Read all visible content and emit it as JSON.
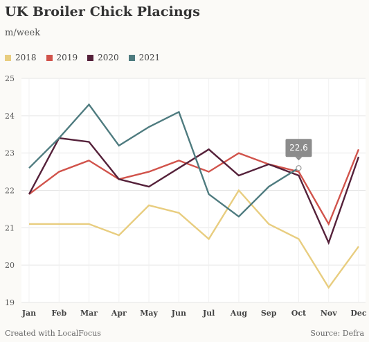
{
  "title": "UK Broiler Chick Placings",
  "subtitle": "m/week",
  "footer": {
    "credit": "Created with LocalFocus",
    "source": "Source:  Defra"
  },
  "tooltip": {
    "label": "22.6",
    "series": "2021",
    "month": "Oct"
  },
  "chart_data": {
    "type": "line",
    "categories": [
      "Jan",
      "Feb",
      "Mar",
      "Apr",
      "May",
      "Jun",
      "Jul",
      "Aug",
      "Sep",
      "Oct",
      "Nov",
      "Dec"
    ],
    "ylim": [
      19,
      25
    ],
    "yticks": [
      19,
      20,
      21,
      22,
      23,
      24,
      25
    ],
    "grid": true,
    "legend_position": "top-left",
    "series": [
      {
        "name": "2018",
        "color": "#e8cd7f",
        "values": [
          21.1,
          21.1,
          21.1,
          20.8,
          21.6,
          21.4,
          20.7,
          22.0,
          21.1,
          20.7,
          19.4,
          20.5
        ]
      },
      {
        "name": "2019",
        "color": "#d1534b",
        "values": [
          21.9,
          22.5,
          22.8,
          22.3,
          22.5,
          22.8,
          22.5,
          23.0,
          22.7,
          22.5,
          21.1,
          23.1
        ]
      },
      {
        "name": "2020",
        "color": "#55213a",
        "values": [
          21.9,
          23.4,
          23.3,
          22.3,
          22.1,
          22.6,
          23.1,
          22.4,
          22.7,
          22.4,
          20.6,
          22.9
        ]
      },
      {
        "name": "2021",
        "color": "#4e7b7f",
        "values": [
          22.6,
          23.4,
          24.3,
          23.2,
          23.7,
          24.1,
          21.9,
          21.3,
          22.1,
          22.6,
          null,
          null
        ]
      }
    ]
  }
}
